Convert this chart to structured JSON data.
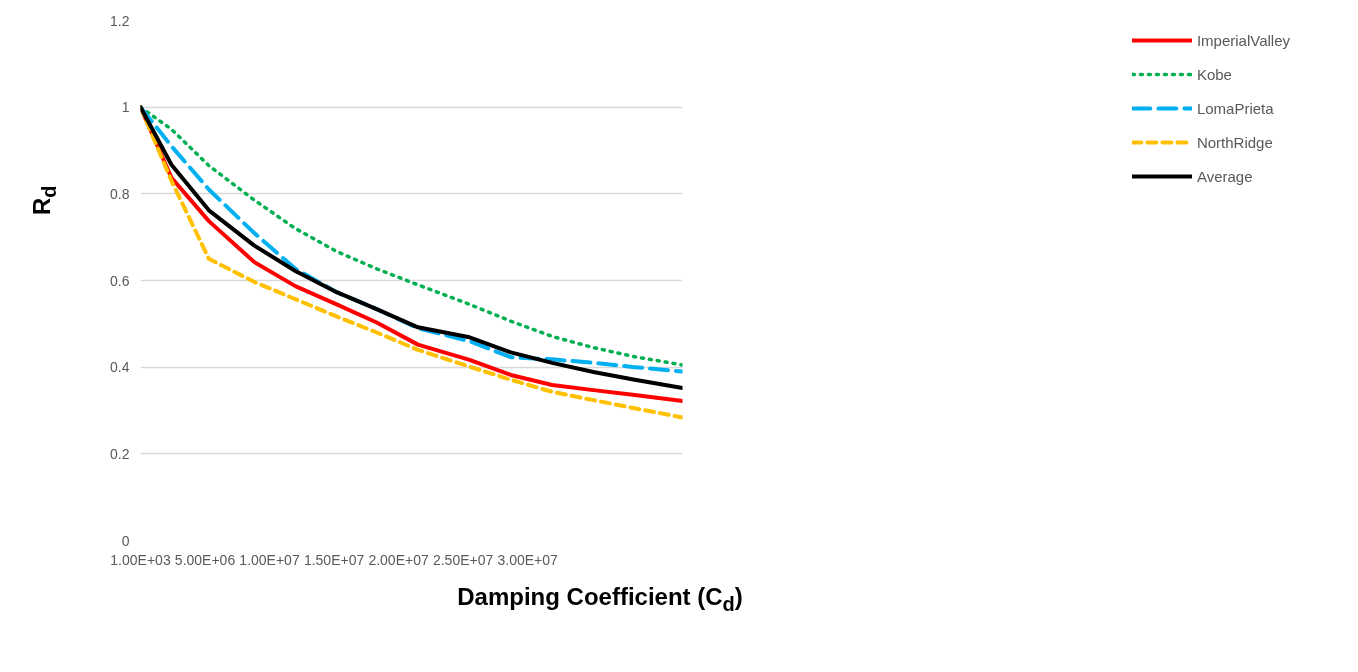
{
  "chart_data": {
    "type": "line",
    "xlabel": "Damping Coefficient (C$_{d}$)",
    "ylabel": "R$_{d}$",
    "x": [
      1000,
      2400000,
      5300000,
      8800000,
      12000000,
      15200000,
      18300000,
      21500000,
      25500000,
      28700000,
      31900000,
      35100000,
      38300000,
      42000000
    ],
    "series": [
      {
        "name": "ImperialValley",
        "color": "#ff0000",
        "line_style": "solid",
        "values": [
          1.0,
          0.837,
          0.737,
          0.643,
          0.587,
          0.545,
          0.503,
          0.452,
          0.417,
          0.382,
          0.359,
          0.347,
          0.336,
          0.322
        ]
      },
      {
        "name": "Kobe",
        "color": "#00b050",
        "line_style": "dotted",
        "values": [
          1.0,
          0.949,
          0.865,
          0.786,
          0.72,
          0.667,
          0.627,
          0.59,
          0.545,
          0.506,
          0.471,
          0.445,
          0.424,
          0.405
        ]
      },
      {
        "name": "LomaPrieta",
        "color": "#00b0f0",
        "line_style": "dashed",
        "values": [
          1.0,
          0.91,
          0.81,
          0.71,
          0.627,
          0.573,
          0.534,
          0.49,
          0.46,
          0.423,
          0.418,
          0.41,
          0.4,
          0.39
        ]
      },
      {
        "name": "NorthRidge",
        "color": "#ffc000",
        "line_style": "dashed",
        "values": [
          1.0,
          0.83,
          0.65,
          0.597,
          0.557,
          0.517,
          0.48,
          0.44,
          0.401,
          0.371,
          0.343,
          0.324,
          0.305,
          0.284
        ]
      },
      {
        "name": "Average",
        "color": "#000000",
        "line_style": "solid",
        "values": [
          1.0,
          0.867,
          0.762,
          0.681,
          0.622,
          0.573,
          0.534,
          0.492,
          0.469,
          0.434,
          0.41,
          0.389,
          0.371,
          0.352
        ]
      }
    ],
    "xlim": [
      1000,
      42000000
    ],
    "xticks": [
      {
        "value": 1000,
        "label": "1.00E+03"
      },
      {
        "value": 5000000,
        "label": "5.00E+06"
      },
      {
        "value": 10000000,
        "label": "1.00E+07"
      },
      {
        "value": 15000000,
        "label": "1.50E+07"
      },
      {
        "value": 20000000,
        "label": "2.00E+07"
      },
      {
        "value": 25000000,
        "label": "2.50E+07"
      },
      {
        "value": 30000000,
        "label": "3.00E+07"
      }
    ],
    "ylim": [
      0,
      1.2
    ],
    "yticks": [
      0,
      0.2,
      0.4,
      0.6,
      0.8,
      1,
      1.2
    ],
    "grid": "y",
    "legend": "right",
    "marker": "none"
  }
}
